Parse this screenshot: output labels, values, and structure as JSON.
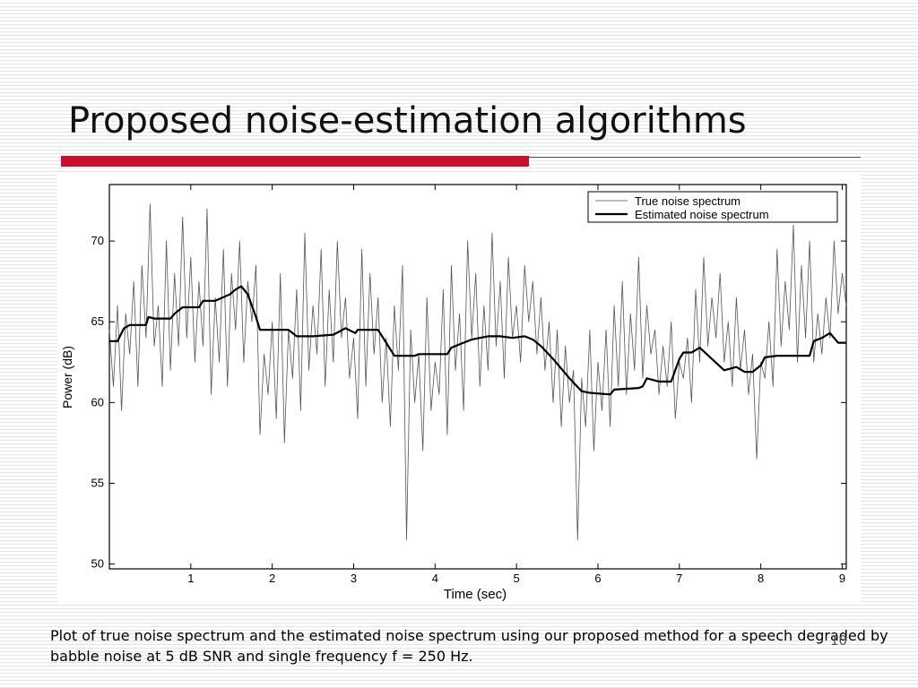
{
  "slide": {
    "title": "Proposed noise-estimation algorithms",
    "caption": "Plot of true noise spectrum and the estimated noise spectrum using our proposed method for a speech degraded by babble noise at 5 dB SNR and single frequency f = 250 Hz.",
    "page_number": "10",
    "accent_color": "#c8102e"
  },
  "chart_data": {
    "type": "line",
    "xlabel": "Time (sec)",
    "ylabel": "Power (dB)",
    "xlim": [
      0,
      9.05
    ],
    "ylim": [
      49.7,
      73.5
    ],
    "x_ticks": [
      1,
      2,
      3,
      4,
      5,
      6,
      7,
      8,
      9
    ],
    "y_ticks": [
      50,
      55,
      60,
      65,
      70
    ],
    "grid": false,
    "legend_position": "top-right",
    "series": [
      {
        "name": "True noise spectrum",
        "color": "#555555",
        "x": [
          0.0,
          0.05,
          0.1,
          0.15,
          0.2,
          0.25,
          0.3,
          0.35,
          0.4,
          0.45,
          0.5,
          0.55,
          0.6,
          0.65,
          0.7,
          0.75,
          0.8,
          0.85,
          0.9,
          0.95,
          1.0,
          1.05,
          1.1,
          1.15,
          1.2,
          1.25,
          1.3,
          1.35,
          1.4,
          1.45,
          1.5,
          1.55,
          1.6,
          1.65,
          1.7,
          1.75,
          1.8,
          1.85,
          1.9,
          1.95,
          2.0,
          2.05,
          2.1,
          2.15,
          2.2,
          2.25,
          2.3,
          2.35,
          2.4,
          2.45,
          2.5,
          2.55,
          2.6,
          2.65,
          2.7,
          2.75,
          2.8,
          2.85,
          2.9,
          2.95,
          3.0,
          3.05,
          3.1,
          3.15,
          3.2,
          3.25,
          3.3,
          3.35,
          3.4,
          3.45,
          3.5,
          3.55,
          3.6,
          3.65,
          3.7,
          3.75,
          3.8,
          3.85,
          3.9,
          3.95,
          4.0,
          4.05,
          4.1,
          4.15,
          4.2,
          4.25,
          4.3,
          4.35,
          4.4,
          4.45,
          4.5,
          4.55,
          4.6,
          4.65,
          4.7,
          4.75,
          4.8,
          4.85,
          4.9,
          4.95,
          5.0,
          5.05,
          5.1,
          5.15,
          5.2,
          5.25,
          5.3,
          5.35,
          5.4,
          5.45,
          5.5,
          5.55,
          5.6,
          5.65,
          5.7,
          5.75,
          5.8,
          5.85,
          5.9,
          5.95,
          6.0,
          6.05,
          6.1,
          6.15,
          6.2,
          6.25,
          6.3,
          6.35,
          6.4,
          6.45,
          6.5,
          6.55,
          6.6,
          6.65,
          6.7,
          6.75,
          6.8,
          6.85,
          6.9,
          6.95,
          7.0,
          7.05,
          7.1,
          7.15,
          7.2,
          7.25,
          7.3,
          7.35,
          7.4,
          7.45,
          7.5,
          7.55,
          7.6,
          7.65,
          7.7,
          7.75,
          7.8,
          7.85,
          7.9,
          7.95,
          8.0,
          8.05,
          8.1,
          8.15,
          8.2,
          8.25,
          8.3,
          8.35,
          8.4,
          8.45,
          8.5,
          8.55,
          8.6,
          8.65,
          8.7,
          8.75,
          8.8,
          8.85,
          8.9,
          8.95,
          9.0,
          9.05
        ],
        "y": [
          64.5,
          61.0,
          66.0,
          59.5,
          65.5,
          63.0,
          67.5,
          61.0,
          68.5,
          64.0,
          72.3,
          63.5,
          66.0,
          61.0,
          70.0,
          62.0,
          68.0,
          63.5,
          71.5,
          64.0,
          69.0,
          62.5,
          67.5,
          63.5,
          72.0,
          60.5,
          66.5,
          62.5,
          69.5,
          61.0,
          68.0,
          64.5,
          70.0,
          62.5,
          67.5,
          65.0,
          68.5,
          58.0,
          63.0,
          60.5,
          65.0,
          59.0,
          68.0,
          57.5,
          64.5,
          61.5,
          67.0,
          59.5,
          70.5,
          62.0,
          66.0,
          63.0,
          69.5,
          61.0,
          67.0,
          62.5,
          70.0,
          64.0,
          66.5,
          61.5,
          64.0,
          59.0,
          69.5,
          61.0,
          68.0,
          63.0,
          66.5,
          60.0,
          64.0,
          58.5,
          66.0,
          62.0,
          68.5,
          51.5,
          64.5,
          60.0,
          63.0,
          57.0,
          66.5,
          59.5,
          62.5,
          60.5,
          67.0,
          58.0,
          68.5,
          62.0,
          65.5,
          59.5,
          70.0,
          64.0,
          68.0,
          61.0,
          66.0,
          62.0,
          70.5,
          63.5,
          67.5,
          61.5,
          69.0,
          64.0,
          66.0,
          62.5,
          68.5,
          65.0,
          67.5,
          63.0,
          66.5,
          62.0,
          65.0,
          60.0,
          64.5,
          58.5,
          63.5,
          60.0,
          62.0,
          51.5,
          61.5,
          58.5,
          64.5,
          57.0,
          62.5,
          59.5,
          64.5,
          58.5,
          66.0,
          61.0,
          67.5,
          60.5,
          65.5,
          62.0,
          69.0,
          61.5,
          66.0,
          63.0,
          64.5,
          60.5,
          63.5,
          61.0,
          65.0,
          59.0,
          62.5,
          61.5,
          64.0,
          60.0,
          67.0,
          62.5,
          69.0,
          63.5,
          66.5,
          64.0,
          68.0,
          62.5,
          65.0,
          61.0,
          66.5,
          62.0,
          64.5,
          60.5,
          63.0,
          56.5,
          62.5,
          61.5,
          65.0,
          61.0,
          69.5,
          63.5,
          67.5,
          64.5,
          71.0,
          62.5,
          68.5,
          64.0,
          70.0,
          62.5,
          65.5,
          63.0,
          66.5,
          64.0,
          70.0,
          65.5,
          68.0,
          66.0
        ]
      },
      {
        "name": "Estimated noise spectrum",
        "color": "#000000",
        "x": [
          0.0,
          0.1,
          0.18,
          0.25,
          0.45,
          0.48,
          0.55,
          0.75,
          0.8,
          0.9,
          1.1,
          1.15,
          1.3,
          1.48,
          1.55,
          1.62,
          1.7,
          1.8,
          1.85,
          2.0,
          2.2,
          2.3,
          2.5,
          2.75,
          2.9,
          3.02,
          3.05,
          3.3,
          3.4,
          3.5,
          3.55,
          3.75,
          3.8,
          4.15,
          4.2,
          4.3,
          4.45,
          4.55,
          4.65,
          4.8,
          4.95,
          5.1,
          5.2,
          5.3,
          5.45,
          5.65,
          5.8,
          5.9,
          6.15,
          6.2,
          6.5,
          6.55,
          6.6,
          6.75,
          6.9,
          7.0,
          7.05,
          7.15,
          7.25,
          7.4,
          7.55,
          7.7,
          7.8,
          7.9,
          8.0,
          8.05,
          8.2,
          8.3,
          8.6,
          8.65,
          8.75,
          8.85,
          8.95,
          9.05
        ],
        "y": [
          63.8,
          63.8,
          64.6,
          64.8,
          64.8,
          65.3,
          65.2,
          65.2,
          65.5,
          65.9,
          65.9,
          66.3,
          66.3,
          66.7,
          67.0,
          67.2,
          66.7,
          65.3,
          64.5,
          64.5,
          64.5,
          64.1,
          64.1,
          64.2,
          64.6,
          64.3,
          64.5,
          64.5,
          63.7,
          62.9,
          62.9,
          62.9,
          63.0,
          63.0,
          63.4,
          63.6,
          63.9,
          64.0,
          64.1,
          64.1,
          64.0,
          64.1,
          63.9,
          63.5,
          62.7,
          61.5,
          60.7,
          60.6,
          60.5,
          60.8,
          60.9,
          61.0,
          61.5,
          61.3,
          61.3,
          62.7,
          63.1,
          63.1,
          63.4,
          62.7,
          62.0,
          62.2,
          61.9,
          61.9,
          62.3,
          62.8,
          62.9,
          62.9,
          62.9,
          63.8,
          64.0,
          64.3,
          63.7,
          63.7
        ]
      }
    ]
  }
}
